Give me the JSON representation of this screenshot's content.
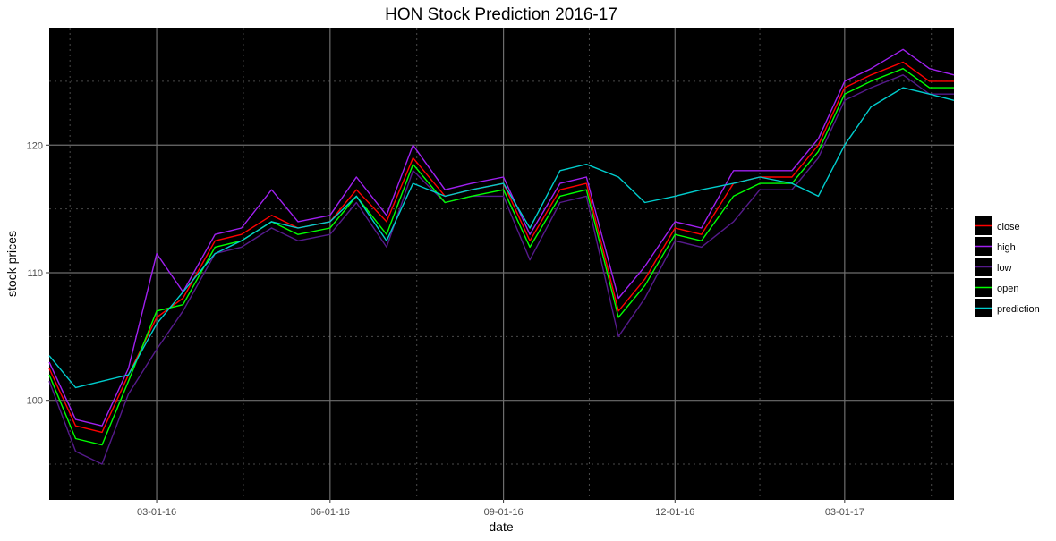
{
  "chart_data": {
    "type": "line",
    "title": "HON Stock Prediction 2016-17",
    "xlabel": "date",
    "ylabel": "stock prices",
    "x_ticks": [
      "03-01-16",
      "06-01-16",
      "09-01-16",
      "12-01-16",
      "03-01-17"
    ],
    "y_ticks": [
      100,
      110,
      120
    ],
    "xlim": [
      "2016-01-04",
      "2017-04-28"
    ],
    "ylim": [
      92.2,
      129.2
    ],
    "grid": true,
    "background": "#000000",
    "legend_position": "right",
    "x_dates": [
      "2016-01-04",
      "2016-01-18",
      "2016-02-01",
      "2016-02-15",
      "2016-03-01",
      "2016-03-15",
      "2016-04-01",
      "2016-04-15",
      "2016-05-01",
      "2016-05-15",
      "2016-06-01",
      "2016-06-15",
      "2016-07-01",
      "2016-07-15",
      "2016-08-01",
      "2016-08-15",
      "2016-09-01",
      "2016-09-15",
      "2016-10-01",
      "2016-10-15",
      "2016-11-01",
      "2016-11-15",
      "2016-12-01",
      "2016-12-15",
      "2017-01-01",
      "2017-01-15",
      "2017-02-01",
      "2017-02-15",
      "2017-03-01",
      "2017-03-15",
      "2017-04-01",
      "2017-04-15",
      "2017-04-28"
    ],
    "series": [
      {
        "name": "close",
        "color": "#ff0000",
        "values": [
          102.5,
          98.0,
          97.5,
          102.0,
          106.5,
          108.0,
          112.5,
          113.0,
          114.5,
          113.5,
          114.0,
          116.5,
          114.0,
          119.0,
          116.0,
          116.5,
          117.0,
          112.5,
          116.5,
          117.0,
          107.0,
          109.5,
          113.5,
          113.0,
          117.0,
          117.5,
          117.5,
          120.0,
          124.5,
          125.5,
          126.5,
          125.0,
          125.0
        ]
      },
      {
        "name": "high",
        "color": "#a020f0",
        "values": [
          103.0,
          98.5,
          98.0,
          102.5,
          111.5,
          108.5,
          113.0,
          113.5,
          116.5,
          114.0,
          114.5,
          117.5,
          114.5,
          120.0,
          116.5,
          117.0,
          117.5,
          113.0,
          117.0,
          117.5,
          108.0,
          110.5,
          114.0,
          113.5,
          118.0,
          118.0,
          118.0,
          120.5,
          125.0,
          126.0,
          127.5,
          126.0,
          125.5
        ]
      },
      {
        "name": "low",
        "color": "#551a8b",
        "values": [
          101.5,
          96.0,
          95.0,
          100.5,
          104.0,
          107.0,
          111.5,
          112.0,
          113.5,
          112.5,
          113.0,
          115.5,
          112.0,
          118.0,
          115.5,
          116.0,
          116.0,
          111.0,
          115.5,
          116.0,
          105.0,
          108.0,
          112.5,
          112.0,
          114.0,
          116.5,
          116.5,
          119.0,
          123.5,
          124.5,
          125.5,
          124.0,
          124.0
        ]
      },
      {
        "name": "open",
        "color": "#00ff00",
        "values": [
          102.0,
          97.0,
          96.5,
          101.5,
          107.0,
          107.5,
          112.0,
          112.5,
          114.0,
          113.0,
          113.5,
          116.0,
          113.0,
          118.5,
          115.5,
          116.0,
          116.5,
          112.0,
          116.0,
          116.5,
          106.5,
          109.0,
          113.0,
          112.5,
          116.0,
          117.0,
          117.0,
          119.5,
          124.0,
          125.0,
          126.0,
          124.5,
          124.5
        ]
      },
      {
        "name": "prediction",
        "color": "#00cdcd",
        "values": [
          103.5,
          101.0,
          101.5,
          102.0,
          106.0,
          108.5,
          111.5,
          112.5,
          114.0,
          113.5,
          114.0,
          116.0,
          112.5,
          117.0,
          116.0,
          116.5,
          117.0,
          113.5,
          118.0,
          118.5,
          117.5,
          115.5,
          116.0,
          116.5,
          117.0,
          117.5,
          117.0,
          116.0,
          120.0,
          123.0,
          124.5,
          124.0,
          123.5
        ]
      }
    ]
  }
}
